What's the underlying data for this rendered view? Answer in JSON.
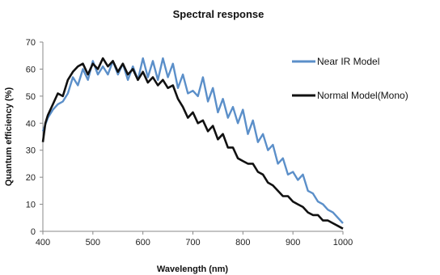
{
  "chart_data": {
    "type": "line",
    "title": "Spectral response",
    "xlabel": "Wavelength (nm)",
    "ylabel": "Quantum efficiency (%)",
    "xlim": [
      400,
      1000
    ],
    "ylim": [
      0,
      70
    ],
    "xticks": [
      400,
      500,
      600,
      700,
      800,
      900,
      1000
    ],
    "yticks": [
      0,
      10,
      20,
      30,
      40,
      50,
      60,
      70
    ],
    "grid": false,
    "legend_position": "right",
    "series": [
      {
        "name": "Near IR Model",
        "color": "#5b8fc9",
        "points": [
          [
            400,
            37
          ],
          [
            410,
            42
          ],
          [
            420,
            45
          ],
          [
            430,
            47
          ],
          [
            440,
            48
          ],
          [
            450,
            51
          ],
          [
            460,
            57
          ],
          [
            470,
            54
          ],
          [
            480,
            60
          ],
          [
            490,
            56
          ],
          [
            500,
            63
          ],
          [
            510,
            58
          ],
          [
            520,
            61
          ],
          [
            530,
            58
          ],
          [
            540,
            63
          ],
          [
            550,
            58
          ],
          [
            560,
            62
          ],
          [
            570,
            56
          ],
          [
            580,
            61
          ],
          [
            590,
            56
          ],
          [
            600,
            64
          ],
          [
            610,
            57
          ],
          [
            620,
            63
          ],
          [
            630,
            56
          ],
          [
            640,
            64
          ],
          [
            650,
            57
          ],
          [
            660,
            62
          ],
          [
            670,
            53
          ],
          [
            680,
            58
          ],
          [
            690,
            51
          ],
          [
            700,
            52
          ],
          [
            710,
            50
          ],
          [
            720,
            57
          ],
          [
            730,
            48
          ],
          [
            740,
            53
          ],
          [
            750,
            44
          ],
          [
            760,
            49
          ],
          [
            770,
            42
          ],
          [
            780,
            46
          ],
          [
            790,
            40
          ],
          [
            800,
            45
          ],
          [
            810,
            36
          ],
          [
            820,
            41
          ],
          [
            830,
            33
          ],
          [
            840,
            36
          ],
          [
            850,
            30
          ],
          [
            860,
            32
          ],
          [
            870,
            25
          ],
          [
            880,
            27
          ],
          [
            890,
            21
          ],
          [
            900,
            22
          ],
          [
            910,
            19
          ],
          [
            920,
            21
          ],
          [
            930,
            15
          ],
          [
            940,
            14
          ],
          [
            950,
            11
          ],
          [
            960,
            10
          ],
          [
            970,
            8
          ],
          [
            980,
            7
          ],
          [
            990,
            5
          ],
          [
            1000,
            3
          ]
        ]
      },
      {
        "name": "Normal Model(Mono)",
        "color": "#111111",
        "points": [
          [
            400,
            33
          ],
          [
            405,
            40
          ],
          [
            410,
            43
          ],
          [
            420,
            47
          ],
          [
            430,
            51
          ],
          [
            440,
            50
          ],
          [
            450,
            56
          ],
          [
            460,
            59
          ],
          [
            470,
            61
          ],
          [
            480,
            62
          ],
          [
            490,
            58
          ],
          [
            500,
            62
          ],
          [
            510,
            60
          ],
          [
            520,
            64
          ],
          [
            530,
            61
          ],
          [
            540,
            63
          ],
          [
            550,
            59
          ],
          [
            560,
            62
          ],
          [
            570,
            58
          ],
          [
            580,
            60
          ],
          [
            590,
            56
          ],
          [
            600,
            59
          ],
          [
            610,
            55
          ],
          [
            620,
            57
          ],
          [
            630,
            54
          ],
          [
            640,
            56
          ],
          [
            650,
            53
          ],
          [
            660,
            54
          ],
          [
            670,
            49
          ],
          [
            680,
            46
          ],
          [
            690,
            42
          ],
          [
            700,
            44
          ],
          [
            710,
            40
          ],
          [
            720,
            41
          ],
          [
            730,
            37
          ],
          [
            740,
            39
          ],
          [
            750,
            34
          ],
          [
            760,
            36
          ],
          [
            770,
            31
          ],
          [
            780,
            31
          ],
          [
            790,
            27
          ],
          [
            800,
            26
          ],
          [
            810,
            25
          ],
          [
            820,
            25
          ],
          [
            830,
            22
          ],
          [
            840,
            21
          ],
          [
            850,
            18
          ],
          [
            860,
            17
          ],
          [
            870,
            15
          ],
          [
            880,
            13
          ],
          [
            890,
            13
          ],
          [
            900,
            11
          ],
          [
            910,
            10
          ],
          [
            920,
            9
          ],
          [
            930,
            7
          ],
          [
            940,
            6
          ],
          [
            950,
            6
          ],
          [
            960,
            4
          ],
          [
            970,
            4
          ],
          [
            980,
            3
          ],
          [
            990,
            2
          ],
          [
            1000,
            1
          ]
        ]
      }
    ]
  }
}
